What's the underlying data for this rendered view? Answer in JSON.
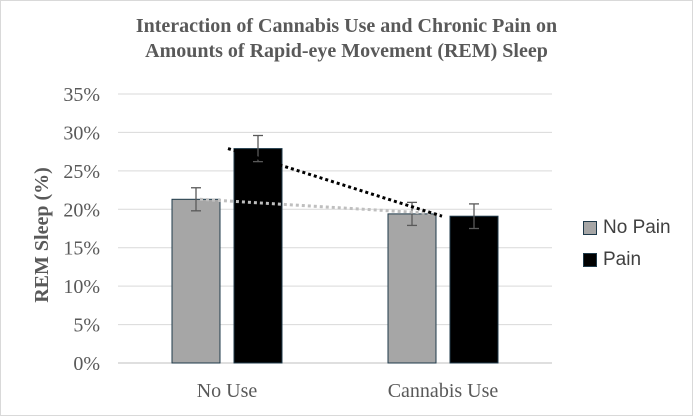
{
  "chart_data": {
    "type": "bar",
    "title_line1": "Interaction of Cannabis Use and Chronic Pain on",
    "title_line2": "Amounts of Rapid-eye Movement (REM) Sleep",
    "xlabel": "",
    "ylabel": "REM Sleep (%)",
    "categories": [
      "No Use",
      "Cannabis Use"
    ],
    "ylim": [
      0,
      35
    ],
    "yticks": [
      "0%",
      "5%",
      "10%",
      "15%",
      "20%",
      "25%",
      "30%",
      "35%"
    ],
    "grid": true,
    "legend_position": "right",
    "series": [
      {
        "name": "No Pain",
        "values": [
          21.3,
          19.4
        ],
        "errors": [
          1.5,
          1.5
        ],
        "color": "#a6a6a6",
        "trend_color": "#bfbfbf"
      },
      {
        "name": "Pain",
        "values": [
          27.9,
          19.1
        ],
        "errors": [
          1.7,
          1.6
        ],
        "color": "#000000",
        "trend_color": "#000000"
      }
    ]
  }
}
